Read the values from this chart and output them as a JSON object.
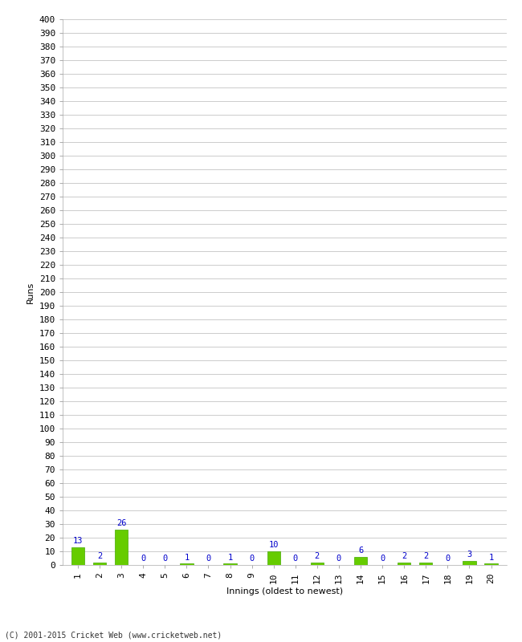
{
  "xlabel": "Innings (oldest to newest)",
  "ylabel": "Runs",
  "innings": [
    1,
    2,
    3,
    4,
    5,
    6,
    7,
    8,
    9,
    10,
    11,
    12,
    13,
    14,
    15,
    16,
    17,
    18,
    19,
    20
  ],
  "values": [
    13,
    2,
    26,
    0,
    0,
    1,
    0,
    1,
    0,
    10,
    0,
    2,
    0,
    6,
    0,
    2,
    2,
    0,
    3,
    1
  ],
  "bar_color": "#66cc00",
  "bar_edge_color": "#44aa00",
  "label_color": "#0000cc",
  "ylim": [
    0,
    400
  ],
  "ytick_step": 10,
  "background_color": "#ffffff",
  "grid_color": "#cccccc",
  "footer": "(C) 2001-2015 Cricket Web (www.cricketweb.net)",
  "label_fontsize": 7.5,
  "axis_fontsize": 8,
  "ylabel_fontsize": 8,
  "xlabel_fontsize": 8
}
